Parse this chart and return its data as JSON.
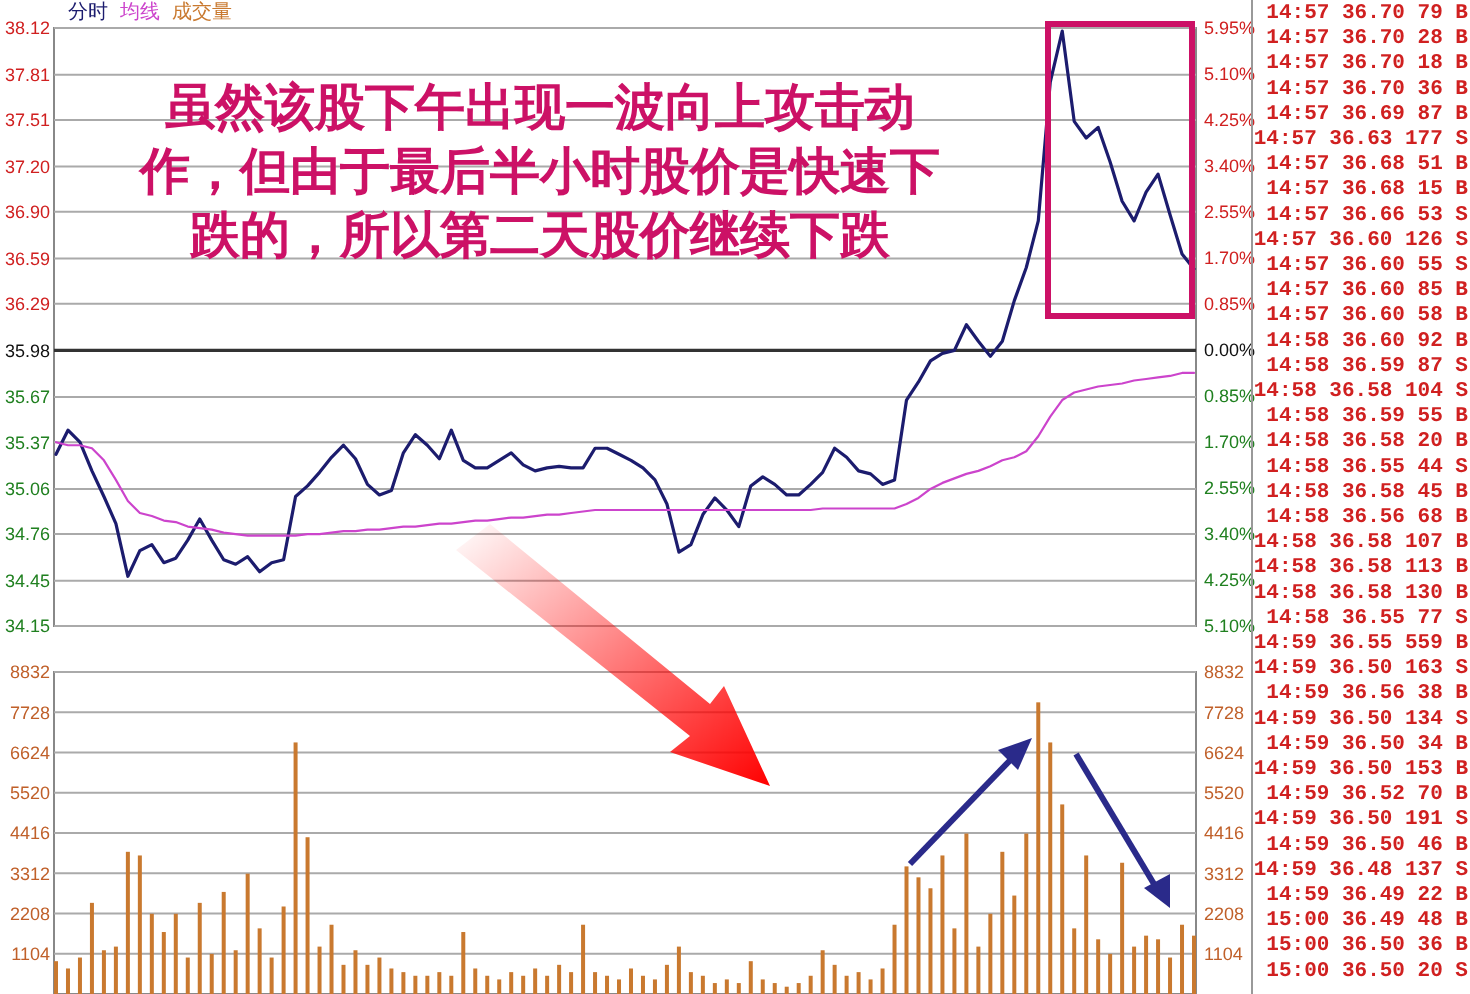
{
  "chart_data": [
    {
      "type": "line",
      "categories": [
        null,
        null,
        null,
        null,
        null,
        null,
        null,
        null,
        null,
        null,
        null,
        null,
        null,
        null,
        null,
        null,
        null,
        null,
        null,
        null,
        null,
        null,
        null,
        null,
        null,
        null,
        null,
        null,
        null,
        null,
        null,
        null,
        null,
        null,
        null,
        null,
        null,
        null,
        null,
        null,
        null,
        null,
        null,
        null,
        null,
        null,
        null,
        null,
        null,
        null,
        null,
        null,
        null,
        null,
        null,
        null,
        null,
        null,
        null,
        null,
        null,
        null,
        null,
        null,
        null,
        null,
        null,
        null,
        null,
        null,
        null,
        null,
        null,
        null,
        null,
        null,
        null,
        null,
        null,
        null,
        null,
        null,
        null,
        null,
        null,
        null,
        null,
        null,
        null,
        null,
        null,
        null,
        null,
        null,
        null,
        null
      ],
      "series": [
        {
          "name": "分时",
          "color": "#1c1c6e",
          "values": [
            35.29,
            35.45,
            35.37,
            35.18,
            35.01,
            34.83,
            34.48,
            34.65,
            34.69,
            34.57,
            34.6,
            34.72,
            34.86,
            34.72,
            34.59,
            34.56,
            34.61,
            34.51,
            34.57,
            34.59,
            35.01,
            35.08,
            35.17,
            35.27,
            35.35,
            35.26,
            35.09,
            35.02,
            35.05,
            35.3,
            35.42,
            35.35,
            35.26,
            35.45,
            35.25,
            35.2,
            35.2,
            35.25,
            35.3,
            35.22,
            35.18,
            35.2,
            35.21,
            35.2,
            35.2,
            35.33,
            35.33,
            35.29,
            35.25,
            35.2,
            35.12,
            34.96,
            34.64,
            34.69,
            34.89,
            35.0,
            34.92,
            34.81,
            35.08,
            35.14,
            35.09,
            35.02,
            35.02,
            35.09,
            35.17,
            35.33,
            35.27,
            35.18,
            35.16,
            35.09,
            35.12,
            35.65,
            35.77,
            35.91,
            35.96,
            35.98,
            36.15,
            36.04,
            35.94,
            36.04,
            36.31,
            36.53,
            36.84,
            37.76,
            38.1,
            37.5,
            37.39,
            37.46,
            37.23,
            36.97,
            36.84,
            37.03,
            37.15,
            36.88,
            36.62,
            36.52
          ]
        },
        {
          "name": "均线",
          "color": "#cc44cc",
          "values": [
            35.37,
            35.35,
            35.35,
            35.33,
            35.25,
            35.12,
            34.98,
            34.9,
            34.88,
            34.85,
            34.84,
            34.81,
            34.8,
            34.79,
            34.77,
            34.76,
            34.75,
            34.75,
            34.75,
            34.75,
            34.75,
            34.76,
            34.76,
            34.77,
            34.78,
            34.78,
            34.79,
            34.79,
            34.8,
            34.81,
            34.81,
            34.82,
            34.83,
            34.83,
            34.84,
            34.85,
            34.85,
            34.86,
            34.87,
            34.87,
            34.88,
            34.89,
            34.89,
            34.9,
            34.91,
            34.92,
            34.92,
            34.92,
            34.92,
            34.92,
            34.92,
            34.92,
            34.92,
            34.92,
            34.92,
            34.92,
            34.92,
            34.92,
            34.92,
            34.92,
            34.92,
            34.92,
            34.92,
            34.92,
            34.93,
            34.93,
            34.93,
            34.93,
            34.93,
            34.93,
            34.93,
            34.96,
            35.0,
            35.06,
            35.1,
            35.13,
            35.16,
            35.18,
            35.21,
            35.25,
            35.27,
            35.31,
            35.41,
            35.54,
            35.65,
            35.7,
            35.72,
            35.74,
            35.75,
            35.76,
            35.78,
            35.79,
            35.8,
            35.81,
            35.83,
            35.83
          ]
        }
      ],
      "ylim": [
        34.15,
        38.12
      ],
      "yticks": [
        34.15,
        34.45,
        34.76,
        35.06,
        35.37,
        35.67,
        35.98,
        36.29,
        36.59,
        {
          "value": 36.9,
          "label": "36.90"
        },
        {
          "value": 37.2,
          "label": "37.20"
        },
        37.51,
        37.81,
        38.12
      ],
      "y2lim": [
        -5.1,
        5.95
      ],
      "y2ticks": [
        {
          "value": -5.1,
          "label": "5.10%"
        },
        {
          "value": -4.25,
          "label": "4.25%"
        },
        {
          "value": -3.4,
          "label": "3.40%"
        },
        {
          "value": -2.55,
          "label": "2.55%"
        },
        {
          "value": -1.7,
          "label": "1.70%"
        },
        {
          "value": -0.85,
          "label": "0.85%"
        },
        {
          "value": 0,
          "label": "0.00%"
        },
        {
          "value": 0.85,
          "label": "0.85%"
        },
        {
          "value": 1.7,
          "label": "1.70%"
        },
        {
          "value": 2.55,
          "label": "2.55%"
        },
        {
          "value": 3.4,
          "label": "3.40%"
        },
        {
          "value": 4.25,
          "label": "4.25%"
        },
        {
          "value": 5.1,
          "label": "5.10%"
        },
        {
          "value": 5.95,
          "label": "5.95%"
        }
      ],
      "ref_lines": [
        {
          "axis": "y",
          "value": 35.98,
          "color": "#333333"
        }
      ],
      "grid": "y",
      "legend": "top left",
      "line_style": "solid",
      "annotations": [
        "虽然该股下午出现一波向上攻击动",
        "作，但由于最后半小时股价是快速下",
        "跌的，所以第二天股价继续下跌"
      ]
    },
    {
      "type": "bar",
      "categories": [
        null,
        null,
        null,
        null,
        null,
        null,
        null,
        null,
        null,
        null,
        null,
        null,
        null,
        null,
        null,
        null,
        null,
        null,
        null,
        null,
        null,
        null,
        null,
        null,
        null,
        null,
        null,
        null,
        null,
        null,
        null,
        null,
        null,
        null,
        null,
        null,
        null,
        null,
        null,
        null,
        null,
        null,
        null,
        null,
        null,
        null,
        null,
        null,
        null,
        null,
        null,
        null,
        null,
        null,
        null,
        null,
        null,
        null,
        null,
        null,
        null,
        null,
        null,
        null,
        null,
        null,
        null,
        null,
        null,
        null,
        null,
        null,
        null,
        null,
        null,
        null,
        null,
        null,
        null,
        null,
        null,
        null,
        null,
        null,
        null,
        null,
        null,
        null,
        null,
        null,
        null,
        null,
        null,
        null,
        null,
        null
      ],
      "series": [
        {
          "name": "成交量",
          "color": "#c9792f",
          "values": [
            900,
            700,
            1000,
            2500,
            1200,
            1300,
            3900,
            3800,
            2200,
            1700,
            2200,
            1000,
            2500,
            1100,
            2800,
            1200,
            3300,
            1800,
            1000,
            2400,
            6900,
            4300,
            1300,
            1900,
            800,
            1200,
            800,
            1000,
            700,
            600,
            500,
            500,
            600,
            500,
            1700,
            700,
            500,
            400,
            600,
            500,
            700,
            500,
            800,
            600,
            1900,
            600,
            500,
            400,
            700,
            500,
            400,
            800,
            1300,
            600,
            500,
            300,
            400,
            300,
            900,
            400,
            300,
            200,
            300,
            500,
            1200,
            800,
            500,
            600,
            400,
            700,
            1900,
            3500,
            3200,
            2900,
            3800,
            1800,
            4400,
            1300,
            2200,
            3900,
            2700,
            4400,
            8000,
            6900,
            5200,
            1800,
            3800,
            1500,
            1100,
            3600,
            1300,
            1600,
            1500,
            1000,
            1900,
            1600
          ]
        }
      ],
      "ylim": [
        0,
        8832
      ],
      "yticks": [
        1104,
        2208,
        3312,
        4416,
        5520,
        6624,
        7728,
        8832
      ],
      "y2lim": [
        0,
        8832
      ],
      "y2ticks": [
        1104,
        2208,
        3312,
        4416,
        5520,
        6624,
        7728,
        8832
      ],
      "grid": "y",
      "legend": "top left"
    },
    {
      "type": "other",
      "annotations": [
        "14:57 36.70 79 B",
        "14:57 36.70 28 B",
        "14:57 36.70 18 B",
        "14:57 36.70 36 B",
        "14:57 36.69 87 B",
        "14:57 36.63 177 S",
        "14:57 36.68 51 B",
        "14:57 36.68 15 B",
        "14:57 36.66 53 S",
        "14:57 36.60 126 S",
        "14:57 36.60 55 S",
        "14:57 36.60 85 B",
        "14:57 36.60 58 B",
        "14:58 36.60 92 B",
        "14:58 36.59 87 S",
        "14:58 36.58 104 S",
        "14:58 36.59 55 B",
        "14:58 36.58 20 B",
        "14:58 36.55 44 S",
        "14:58 36.58 45 B",
        "14:58 36.56 68 B",
        "14:58 36.58 107 B",
        "14:58 36.58 113 B",
        "14:58 36.58 130 B",
        "14:58 36.55 77 S",
        "14:59 36.55 559 B",
        "14:59 36.50 163 S",
        "14:59 36.56 38 B",
        "14:59 36.50 134 S",
        "14:59 36.50 34 B",
        "14:59 36.50 153 B",
        "14:59 36.52 70 B",
        "14:59 36.50 191 S",
        "14:59 36.50 46 B",
        "14:59 36.48 137 S",
        "14:59 36.49 22 B",
        "15:00 36.49 48 B",
        "15:00 36.50 36 B",
        "15:00 36.50 20 S"
      ]
    }
  ]
}
